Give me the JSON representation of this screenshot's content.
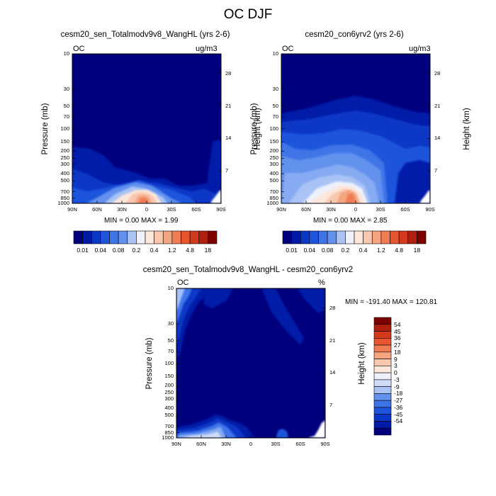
{
  "figure": {
    "title": "OC DJF",
    "colors": {
      "blue_scale": [
        "#00007f",
        "#001aa8",
        "#0a37c6",
        "#1f55dc",
        "#3f74e8",
        "#6291ee",
        "#86abf2",
        "#a9c3f5",
        "#cfdcf8",
        "#eef1fb"
      ],
      "warm_scale": [
        "#fde6da",
        "#f9c7ad",
        "#f4a47f",
        "#ef7c52",
        "#e8562f",
        "#d33a1c",
        "#b0200f",
        "#7f0000"
      ]
    }
  },
  "chart_data": [
    {
      "type": "contour",
      "title": "cesm20_sen_Totalmodv9v8_WangHL (yrs 2-6)",
      "corner_left": "OC",
      "corner_right": "ug/m3",
      "xlabel": "",
      "ylabel": "Pressure (mb)",
      "ylabel_right": "Height (km)",
      "x_ticks": [
        "90N",
        "60N",
        "30N",
        "0",
        "30S",
        "60S",
        "90S"
      ],
      "y_ticks": [
        "10",
        "30",
        "50",
        "70",
        "100",
        "150",
        "200",
        "250",
        "300",
        "400",
        "500",
        "700",
        "850",
        "1000"
      ],
      "y_ticks_right": [
        "28",
        "21",
        "14",
        "7"
      ],
      "min_max_text": "MIN =   0.00   MAX =    1.99",
      "colorbar": {
        "orientation": "horizontal",
        "labels": [
          "0.01",
          "0.04",
          "0.08",
          "0.2",
          "0.4",
          "1.2",
          "4.8",
          "18"
        ]
      }
    },
    {
      "type": "contour",
      "title": "cesm20_con6yrv2 (yrs 2-6)",
      "corner_left": "OC",
      "corner_right": "ug/m3",
      "xlabel": "",
      "ylabel": "Pressure (mb)",
      "ylabel_right": "Height (km)",
      "x_ticks": [
        "90N",
        "60N",
        "30N",
        "0",
        "30S",
        "60S",
        "90S"
      ],
      "y_ticks": [
        "10",
        "30",
        "50",
        "70",
        "100",
        "150",
        "200",
        "250",
        "300",
        "400",
        "500",
        "700",
        "850",
        "1000"
      ],
      "y_ticks_right": [
        "28",
        "21",
        "14",
        "7"
      ],
      "min_max_text": "MIN =   0.00   MAX =    2.85",
      "colorbar": {
        "orientation": "horizontal",
        "labels": [
          "0.01",
          "0.04",
          "0.08",
          "0.2",
          "0.4",
          "1.2",
          "4.8",
          "18"
        ]
      }
    },
    {
      "type": "contour",
      "title": "cesm20_sen_Totalmodv9v8_WangHL - cesm20_con6yrv2",
      "corner_left": "OC",
      "corner_right": "%",
      "xlabel": "",
      "ylabel": "Pressure (mb)",
      "ylabel_right": "Height (km)",
      "x_ticks": [
        "90N",
        "60N",
        "30N",
        "0",
        "30S",
        "60S",
        "90S"
      ],
      "y_ticks": [
        "10",
        "30",
        "50",
        "70",
        "100",
        "150",
        "200",
        "250",
        "300",
        "400",
        "500",
        "700",
        "850",
        "1000"
      ],
      "y_ticks_right": [
        "28",
        "21",
        "14",
        "7"
      ],
      "min_max_text": "MIN = -191.40  MAX = 120.81",
      "colorbar": {
        "orientation": "vertical",
        "labels": [
          "54",
          "45",
          "36",
          "27",
          "18",
          "9",
          "3",
          "0",
          "-3",
          "-9",
          "-18",
          "-27",
          "-36",
          "-45",
          "-54"
        ]
      }
    }
  ]
}
